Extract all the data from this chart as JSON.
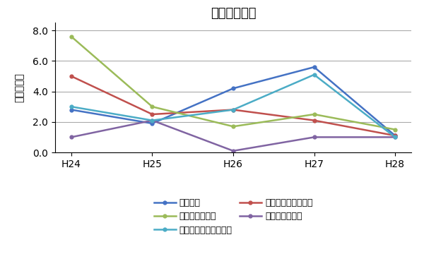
{
  "title": "特別推薦選抜",
  "ylabel_line1": "倍",
  "ylabel_line2": "率",
  "ylabel_line3": "（",
  "ylabel_line4": "倍",
  "ylabel_line5": "）",
  "x_labels": [
    "H24",
    "H25",
    "H26",
    "H27",
    "H28"
  ],
  "x_values": [
    0,
    1,
    2,
    3,
    4
  ],
  "ylim": [
    0.0,
    8.5
  ],
  "yticks": [
    0.0,
    2.0,
    4.0,
    6.0,
    8.0
  ],
  "series": [
    {
      "label": "機械工学",
      "color": "#4472C4",
      "values": [
        2.8,
        1.9,
        4.2,
        5.6,
        1.1
      ]
    },
    {
      "label": "電気・電子情報工学",
      "color": "#C0504D",
      "values": [
        5.0,
        2.5,
        2.8,
        2.1,
        1.1
      ]
    },
    {
      "label": "情報・知能工学",
      "color": "#9BBB59",
      "values": [
        7.6,
        3.0,
        1.7,
        2.5,
        1.5
      ]
    },
    {
      "label": "環境・生命工学",
      "color": "#8064A2",
      "values": [
        1.0,
        2.1,
        0.1,
        1.0,
        1.0
      ]
    },
    {
      "label": "建築・都市システム学",
      "color": "#4BACC6",
      "values": [
        3.0,
        2.1,
        2.8,
        5.1,
        1.0
      ]
    }
  ],
  "grid_color": "#AAAAAA",
  "background_color": "#FFFFFF",
  "title_fontsize": 13,
  "tick_fontsize": 10,
  "legend_fontsize": 9
}
